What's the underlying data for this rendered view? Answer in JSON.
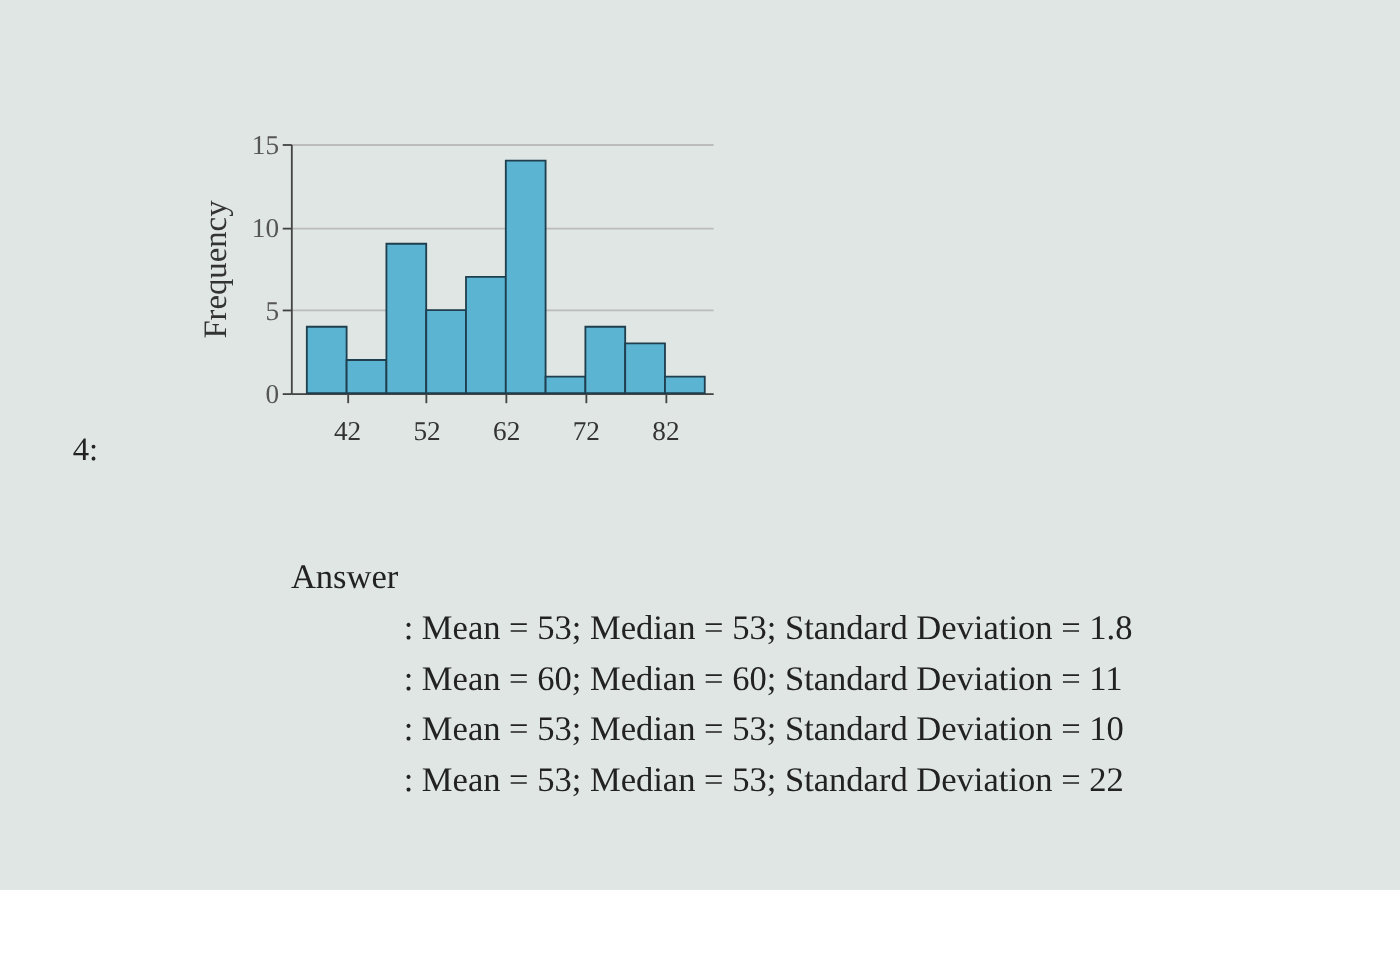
{
  "chart_data": {
    "type": "histogram",
    "ylabel": "Frequency",
    "bins": [
      37,
      42,
      47,
      52,
      57,
      62,
      67,
      72,
      77,
      82,
      87
    ],
    "values": [
      4,
      2,
      9,
      5,
      7,
      14,
      1,
      4,
      3,
      1
    ],
    "color": "#5ab4d2",
    "xlim": [
      35,
      88
    ],
    "xticks": [
      42,
      52,
      62,
      72,
      82
    ],
    "ylim": [
      0,
      15
    ],
    "yticks": [
      0,
      5,
      10,
      15
    ],
    "grid": "y",
    "annotations": [
      "4:",
      "Answer",
      ": Mean = 53; Median = 53; Standard Deviation = 1.8",
      ": Mean = 60; Median = 60; Standard Deviation = 11",
      ": Mean = 53; Median = 53; Standard Deviation = 10",
      ": Mean = 53; Median = 53; Standard Deviation = 22"
    ]
  }
}
